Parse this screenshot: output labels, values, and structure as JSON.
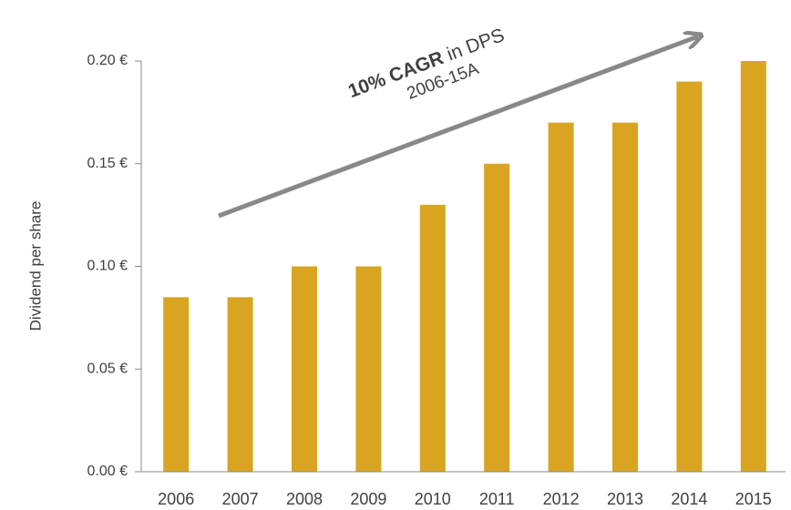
{
  "chart_data": {
    "type": "bar",
    "y_label": "Dividend per share",
    "annotation": {
      "bold": "10% CAGR",
      "text": "in DPS",
      "subtext": "2006-15A"
    },
    "categories": [
      "2006",
      "2007",
      "2008",
      "2009",
      "2010",
      "2011",
      "2012",
      "2013",
      "2014",
      "2015"
    ],
    "values": [
      0.085,
      0.085,
      0.1,
      0.1,
      0.13,
      0.15,
      0.17,
      0.17,
      0.19,
      0.2
    ],
    "color": "#d9a521",
    "ylim": [
      0,
      0.2
    ],
    "yticks": [
      {
        "value": 0,
        "label": "0.00 €"
      },
      {
        "value": 0.05,
        "label": "0.05 €"
      },
      {
        "value": 0.1,
        "label": "0.10 €"
      },
      {
        "value": 0.15,
        "label": "0.15 €"
      },
      {
        "value": 0.2,
        "label": "0.20 €"
      }
    ]
  }
}
